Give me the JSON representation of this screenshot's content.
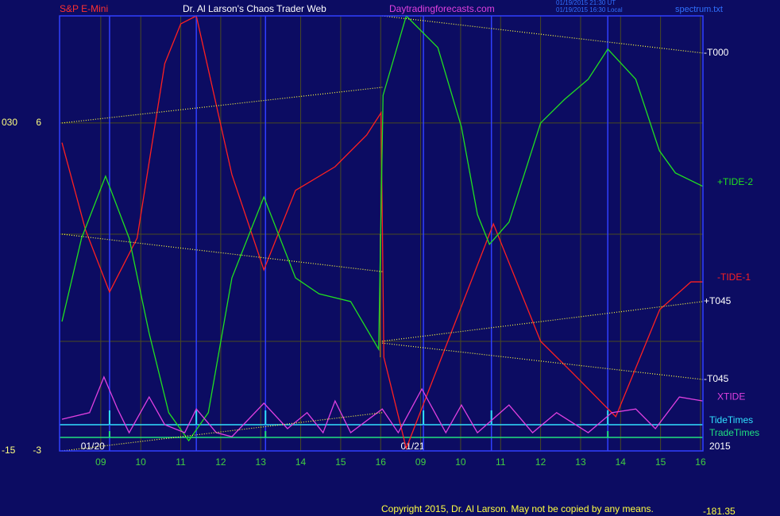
{
  "chart_data": {
    "type": "line",
    "title": "Dr. Al Larson's Chaos Trader Web",
    "instrument": "S&P E-Mini",
    "website": "Daytradingforecasts.com",
    "timestamps": [
      "01/19/2015 21:30 UT",
      "01/19/2015 16:30 Local"
    ],
    "file_name": "spectrum.txt",
    "copyright": "Copyright 2015, Dr. Al Larson. May not be copied by any means.",
    "corner_value": "-181.35",
    "year": "2015",
    "date_labels": [
      {
        "value": 0.8,
        "label": "01/20"
      },
      {
        "value": 8.8,
        "label": "01/21"
      }
    ],
    "xlim": [
      -0.03,
      16.06
    ],
    "xticks": [
      {
        "value": 1,
        "label": "09"
      },
      {
        "value": 2,
        "label": "10"
      },
      {
        "value": 3,
        "label": "11"
      },
      {
        "value": 4,
        "label": "12"
      },
      {
        "value": 5,
        "label": "13"
      },
      {
        "value": 6,
        "label": "14"
      },
      {
        "value": 7,
        "label": "15"
      },
      {
        "value": 8,
        "label": "16"
      },
      {
        "value": 9,
        "label": "09"
      },
      {
        "value": 10,
        "label": "10"
      },
      {
        "value": 11,
        "label": "11"
      },
      {
        "value": 12,
        "label": "12"
      },
      {
        "value": 13,
        "label": "13"
      },
      {
        "value": 14,
        "label": "14"
      },
      {
        "value": 15,
        "label": "15"
      },
      {
        "value": 16,
        "label": "16"
      }
    ],
    "ylim": [
      -3,
      8.94
    ],
    "yticks": [
      -3,
      6
    ],
    "outer_yticks": [
      {
        "value": -3,
        "label": "-15"
      },
      {
        "value": 6,
        "label": "030"
      }
    ],
    "grid": true,
    "series": [
      {
        "name": "-TIDE-1",
        "color": "#ff2020",
        "style": "solid",
        "x": [
          0.03,
          0.62,
          1.22,
          1.91,
          2.6,
          3.0,
          3.39,
          4.28,
          5.08,
          5.87,
          6.86,
          7.65,
          8.01,
          8.08,
          8.64,
          10.82,
          12.0,
          12.8,
          13.59,
          13.88,
          14.98,
          15.76,
          16.06
        ],
        "values": [
          5.46,
          3.06,
          1.36,
          2.84,
          7.63,
          8.72,
          8.94,
          4.58,
          1.97,
          4.15,
          4.8,
          5.67,
          6.28,
          -0.43,
          -2.93,
          3.23,
          0.01,
          -0.86,
          -1.74,
          -2.06,
          0.88,
          1.64,
          1.64
        ]
      },
      {
        "name": "+TIDE-2",
        "color": "#20e020",
        "style": "solid",
        "x": [
          0.03,
          0.52,
          1.12,
          1.71,
          2.21,
          2.7,
          3.2,
          3.69,
          4.28,
          5.08,
          5.87,
          6.46,
          7.25,
          7.95,
          8.06,
          8.64,
          9.43,
          10.02,
          10.42,
          10.72,
          11.21,
          12.0,
          12.6,
          13.19,
          13.68,
          14.38,
          14.97,
          15.37,
          16.06
        ],
        "values": [
          0.55,
          2.84,
          4.54,
          2.84,
          0.23,
          -1.95,
          -2.72,
          -1.95,
          1.75,
          3.97,
          1.75,
          1.31,
          1.1,
          -0.21,
          6.76,
          8.94,
          8.07,
          5.89,
          3.49,
          2.67,
          3.28,
          6.0,
          6.65,
          7.2,
          8.03,
          7.2,
          5.24,
          4.63,
          4.26
        ]
      },
      {
        "name": "XTIDE",
        "color": "#e040e0",
        "style": "solid",
        "x": [
          0.03,
          0.72,
          1.08,
          1.42,
          1.71,
          2.21,
          2.6,
          3.1,
          3.39,
          3.89,
          4.28,
          5.08,
          5.67,
          6.16,
          6.56,
          6.86,
          7.25,
          8.04,
          8.44,
          9.03,
          9.63,
          10.02,
          10.42,
          11.21,
          11.8,
          12.4,
          13.19,
          13.78,
          14.38,
          14.87,
          15.47,
          16.06
        ],
        "values": [
          -2.13,
          -1.95,
          -0.97,
          -1.85,
          -2.5,
          -1.52,
          -2.28,
          -2.5,
          -1.85,
          -2.5,
          -2.61,
          -1.69,
          -2.39,
          -1.95,
          -2.5,
          -1.63,
          -2.5,
          -1.85,
          -2.5,
          -1.3,
          -2.5,
          -1.74,
          -2.5,
          -1.74,
          -2.5,
          -1.95,
          -2.5,
          -1.95,
          -1.85,
          -2.39,
          -1.52,
          -1.63
        ]
      },
      {
        "color": "#ffff40",
        "style": "dotted",
        "x": [
          0.03,
          8.04
        ],
        "values": [
          6.0,
          6.98
        ]
      },
      {
        "name": "-T000",
        "color": "#ffff40",
        "style": "dotted",
        "x": [
          8.04,
          16.06
        ],
        "values": [
          8.94,
          7.92
        ]
      },
      {
        "color": "#ffff40",
        "style": "dotted",
        "x": [
          0.03,
          8.04
        ],
        "values": [
          2.95,
          1.92
        ]
      },
      {
        "name": "+T045",
        "color": "#ffff40",
        "style": "dotted",
        "x": [
          8.04,
          16.06
        ],
        "values": [
          0.01,
          1.1
        ]
      },
      {
        "name": "-T045",
        "color": "#ffff40",
        "style": "dotted",
        "x": [
          8.04,
          16.06
        ],
        "values": [
          -0.04,
          -1.04
        ]
      },
      {
        "color": "#ffff40",
        "style": "dotted",
        "x": [
          0.03,
          8.04
        ],
        "values": [
          -3.0,
          -1.95
        ]
      }
    ],
    "tide_times": {
      "name": "TideTimes",
      "color": "#30e0ff",
      "level": -2.28,
      "x": [
        1.22,
        3.39,
        5.12,
        9.07,
        10.77,
        13.68
      ]
    },
    "trade_times": {
      "name": "TradeTimes",
      "color": "#20e080",
      "level": -2.63,
      "x": [
        1.22,
        5.12,
        13.68
      ]
    }
  }
}
